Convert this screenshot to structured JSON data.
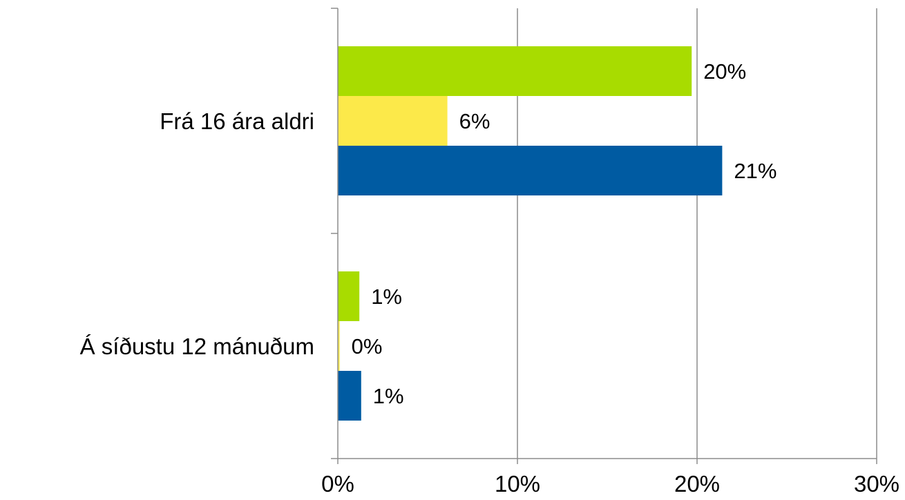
{
  "chart_data": {
    "type": "bar",
    "orientation": "horizontal",
    "categories": [
      "Frá 16 ára aldri",
      "Á síðustu 12 mánuðum"
    ],
    "series": [
      {
        "color": "#a8dc00",
        "values": [
          19.7,
          1.2
        ],
        "labels": [
          "20%",
          "1%"
        ]
      },
      {
        "color": "#fce94a",
        "values": [
          6.1,
          0.1
        ],
        "labels": [
          "6%",
          "0%"
        ]
      },
      {
        "color": "#005ba2",
        "values": [
          21.4,
          1.3
        ],
        "labels": [
          "21%",
          "1%"
        ]
      }
    ],
    "xlim": [
      0,
      30
    ],
    "x_ticks": [
      0,
      10,
      20,
      30
    ],
    "x_tick_labels": [
      "0%",
      "10%",
      "20%",
      "30%"
    ],
    "xlabel": "",
    "ylabel": "",
    "title": "",
    "grid": "vertical",
    "legend": "none"
  }
}
